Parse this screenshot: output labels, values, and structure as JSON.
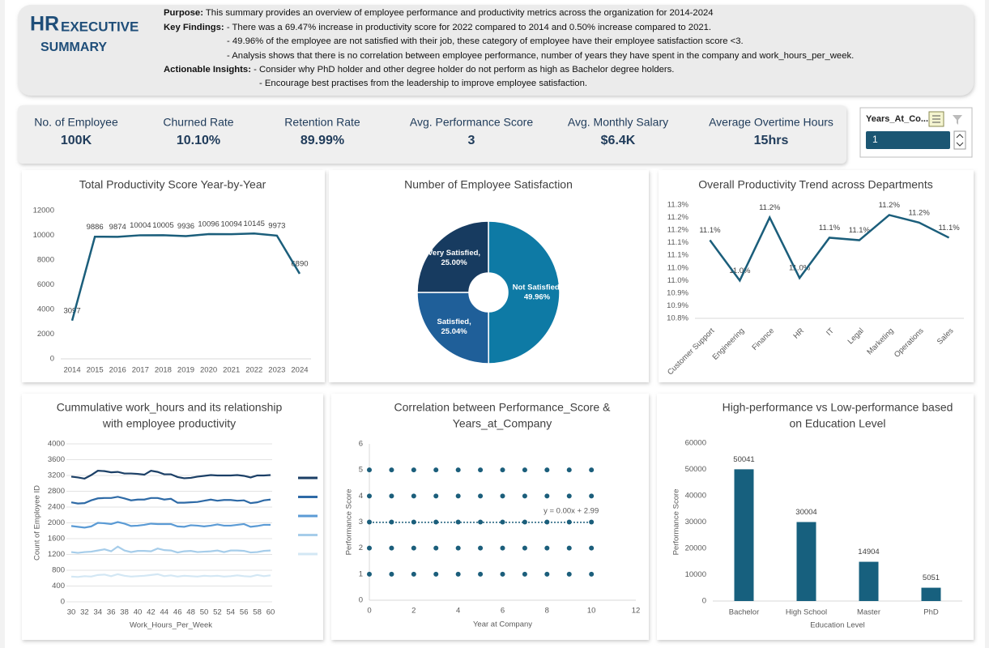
{
  "header": {
    "title_1": "HR",
    "title_2": "EXECUTIVE",
    "title_3": "SUMMARY",
    "lines": [
      {
        "label": "Purpose:",
        "text": " This summary provides an overview of employee performance and productivity metrics across the organization for 2014-2024"
      },
      {
        "label": "Key Findings:",
        "text": " - There was a 69.47% increase in productivity score for 2022 compared to 2014 and 0.50% increase compared to 2021."
      },
      {
        "text": "-  49.96% of the employee are not satisfied with their job, these category of employee have their employee satisfaction score <3."
      },
      {
        "text": "- Analysis shows that there is no correlation between employee performance, number of years they have spent in the company and work_hours_per_week."
      },
      {
        "label": "Actionable Insights:",
        "text": " - Consider why PhD holder and other degree holder do not perform as high as Bachelor degree holders."
      },
      {
        "text": "- Encourage best practises from the leadership to improve employee satisfaction."
      }
    ]
  },
  "kpis": [
    {
      "label": "No. of Employee",
      "value": "100K"
    },
    {
      "label": "Churned Rate",
      "value": "10.10%"
    },
    {
      "label": "Retention Rate",
      "value": "89.99%"
    },
    {
      "label": "Avg. Performance Score",
      "value": "3"
    },
    {
      "label": "Avg. Monthly Salary",
      "value": "$6.4K"
    },
    {
      "label": "Average Overtime Hours",
      "value": "15hrs"
    }
  ],
  "slicer": {
    "title": "Years_At_Co...",
    "selected": "1"
  },
  "chart_data": [
    {
      "type": "line",
      "title": "Total Productivity Score Year-by-Year",
      "categories": [
        "2014",
        "2015",
        "2016",
        "2017",
        "2018",
        "2019",
        "2020",
        "2021",
        "2022",
        "2023",
        "2024"
      ],
      "values": [
        3097,
        9886,
        9874,
        10004,
        10005,
        9936,
        10096,
        10094,
        10145,
        9973,
        6890
      ],
      "color": "#1b5e7b",
      "ylim": [
        0,
        12000
      ],
      "yticks": [
        0,
        2000,
        4000,
        6000,
        8000,
        10000,
        12000
      ],
      "grid": false
    },
    {
      "type": "pie",
      "title": "Number of Employee Satisfaction",
      "values": [
        49.96,
        25.04,
        25.0
      ],
      "value_labels": [
        [
          "Not Satisfied,",
          "49.96%"
        ],
        [
          "Satisfied,",
          "25.04%"
        ],
        [
          "Very Satisfied,",
          "25.00%"
        ]
      ],
      "colors": [
        "#0e7aa5",
        "#1f5f99",
        "#173b60"
      ]
    },
    {
      "type": "line",
      "title": "Overall Productivity Trend  across Departments",
      "categories": [
        "Customer Support",
        "Engineering",
        "Finance",
        "HR",
        "IT",
        "Legal",
        "Marketing",
        "Operations",
        "Sales"
      ],
      "values": [
        11.11,
        10.95,
        11.2,
        10.96,
        11.12,
        11.11,
        11.21,
        11.18,
        11.12
      ],
      "value_labels": [
        "11.1%",
        "11.0%",
        "11.2%",
        "11.0%",
        "11.1%",
        "11.1%",
        "11.2%",
        "11.2%",
        "11.1%"
      ],
      "color": "#1b5e7b",
      "ylim": [
        10.8,
        11.25
      ],
      "yticks": [
        {
          "value": 10.8,
          "label": "10.8%"
        },
        {
          "value": 10.85,
          "label": "10.9%"
        },
        {
          "value": 10.9,
          "label": "10.9%"
        },
        {
          "value": 10.95,
          "label": "11.0%"
        },
        {
          "value": 11.0,
          "label": "11.0%"
        },
        {
          "value": 11.05,
          "label": "11.1%"
        },
        {
          "value": 11.1,
          "label": "11.1%"
        },
        {
          "value": 11.15,
          "label": "11.2%"
        },
        {
          "value": 11.2,
          "label": "11.2%"
        },
        {
          "value": 11.25,
          "label": "11.3%"
        }
      ],
      "grid": false
    },
    {
      "type": "line",
      "stacked": true,
      "title": [
        "Cummulative work_hours and its relationship",
        "with employee productivity"
      ],
      "x_label": "Work_Hours_Per_Week",
      "y_label": "Count of Employee ID",
      "x": [
        30,
        31,
        32,
        33,
        34,
        35,
        36,
        37,
        38,
        39,
        40,
        41,
        42,
        43,
        44,
        45,
        46,
        47,
        48,
        49,
        50,
        51,
        52,
        53,
        54,
        55,
        56,
        57,
        58,
        59,
        60
      ],
      "xlim": [
        30,
        60
      ],
      "xticks": [
        30,
        32,
        34,
        36,
        38,
        40,
        42,
        44,
        46,
        48,
        50,
        52,
        54,
        56,
        58,
        60
      ],
      "ylim": [
        0,
        4000
      ],
      "yticks": [
        0,
        400,
        800,
        1200,
        1600,
        2000,
        2400,
        2800,
        3200,
        3600,
        4000
      ],
      "grid": true,
      "series": [
        {
          "color": "#d3e7f4",
          "values": [
            640,
            630,
            650,
            640,
            680,
            690,
            650,
            700,
            660,
            640,
            650,
            660,
            680,
            700,
            650,
            670,
            640,
            660,
            650,
            640,
            660,
            650,
            660,
            640,
            650,
            670,
            650,
            640,
            680,
            650,
            670
          ]
        },
        {
          "color": "#a6cdea",
          "values": [
            620,
            610,
            610,
            630,
            620,
            640,
            630,
            700,
            640,
            620,
            640,
            630,
            600,
            650,
            660,
            630,
            610,
            620,
            640,
            620,
            610,
            630,
            640,
            620,
            650,
            630,
            640,
            610,
            580,
            640,
            630
          ]
        },
        {
          "color": "#5b9bd5",
          "values": [
            660,
            660,
            620,
            640,
            700,
            660,
            690,
            620,
            680,
            660,
            640,
            660,
            700,
            620,
            660,
            670,
            660,
            620,
            650,
            670,
            640,
            650,
            660,
            670,
            630,
            650,
            680,
            650,
            660,
            660,
            650
          ]
        },
        {
          "color": "#2e6aa6",
          "values": [
            600,
            590,
            620,
            660,
            620,
            640,
            660,
            640,
            640,
            650,
            660,
            640,
            650,
            660,
            620,
            640,
            600,
            610,
            580,
            600,
            650,
            660,
            600,
            650,
            650,
            610,
            600,
            600,
            600,
            620,
            640
          ]
        },
        {
          "color": "#1b3f66",
          "values": [
            650,
            660,
            620,
            640,
            700,
            680,
            650,
            630,
            630,
            680,
            650,
            630,
            690,
            660,
            640,
            620,
            650,
            620,
            620,
            640,
            630,
            620,
            640,
            620,
            620,
            650,
            620,
            650,
            680,
            630,
            620
          ]
        }
      ]
    },
    {
      "type": "scatter",
      "title": [
        "Correlation between Performance_Score &",
        "Years_at_Company"
      ],
      "x_label": "Year at Company",
      "y_label": "Performance Score",
      "color": "#1b5e7b",
      "x": [
        0,
        0,
        0,
        0,
        0,
        1,
        1,
        1,
        1,
        1,
        2,
        2,
        2,
        2,
        2,
        3,
        3,
        3,
        3,
        3,
        4,
        4,
        4,
        4,
        4,
        5,
        5,
        5,
        5,
        5,
        6,
        6,
        6,
        6,
        6,
        7,
        7,
        7,
        7,
        7,
        8,
        8,
        8,
        8,
        8,
        9,
        9,
        9,
        9,
        9,
        10,
        10,
        10,
        10,
        10
      ],
      "y": [
        1,
        2,
        3,
        4,
        5,
        1,
        2,
        3,
        4,
        5,
        1,
        2,
        3,
        4,
        5,
        1,
        2,
        3,
        4,
        5,
        1,
        2,
        3,
        4,
        5,
        1,
        2,
        3,
        4,
        5,
        1,
        2,
        3,
        4,
        5,
        1,
        2,
        3,
        4,
        5,
        1,
        2,
        3,
        4,
        5,
        1,
        2,
        3,
        4,
        5,
        1,
        2,
        3,
        4,
        5
      ],
      "xlim": [
        0,
        12
      ],
      "xticks": [
        0,
        2,
        4,
        6,
        8,
        10,
        12
      ],
      "ylim": [
        0,
        6
      ],
      "yticks": [
        0,
        1,
        2,
        3,
        4,
        5,
        6
      ],
      "trendline": {
        "slope": 0.0,
        "intercept": 2.99,
        "label": "y = 0.00x + 2.99"
      }
    },
    {
      "type": "bar",
      "title": [
        "High-performance vs Low-performance based",
        "on Education Level"
      ],
      "x_label": "Education Level",
      "y_label": "Performance Score",
      "categories": [
        "Bachelor",
        "High School",
        "Master",
        "PhD"
      ],
      "values": [
        50041,
        30004,
        14904,
        5051
      ],
      "color": "#17607e",
      "ylim": [
        0,
        60000
      ],
      "yticks": [
        0,
        10000,
        20000,
        30000,
        40000,
        50000,
        60000
      ]
    }
  ]
}
